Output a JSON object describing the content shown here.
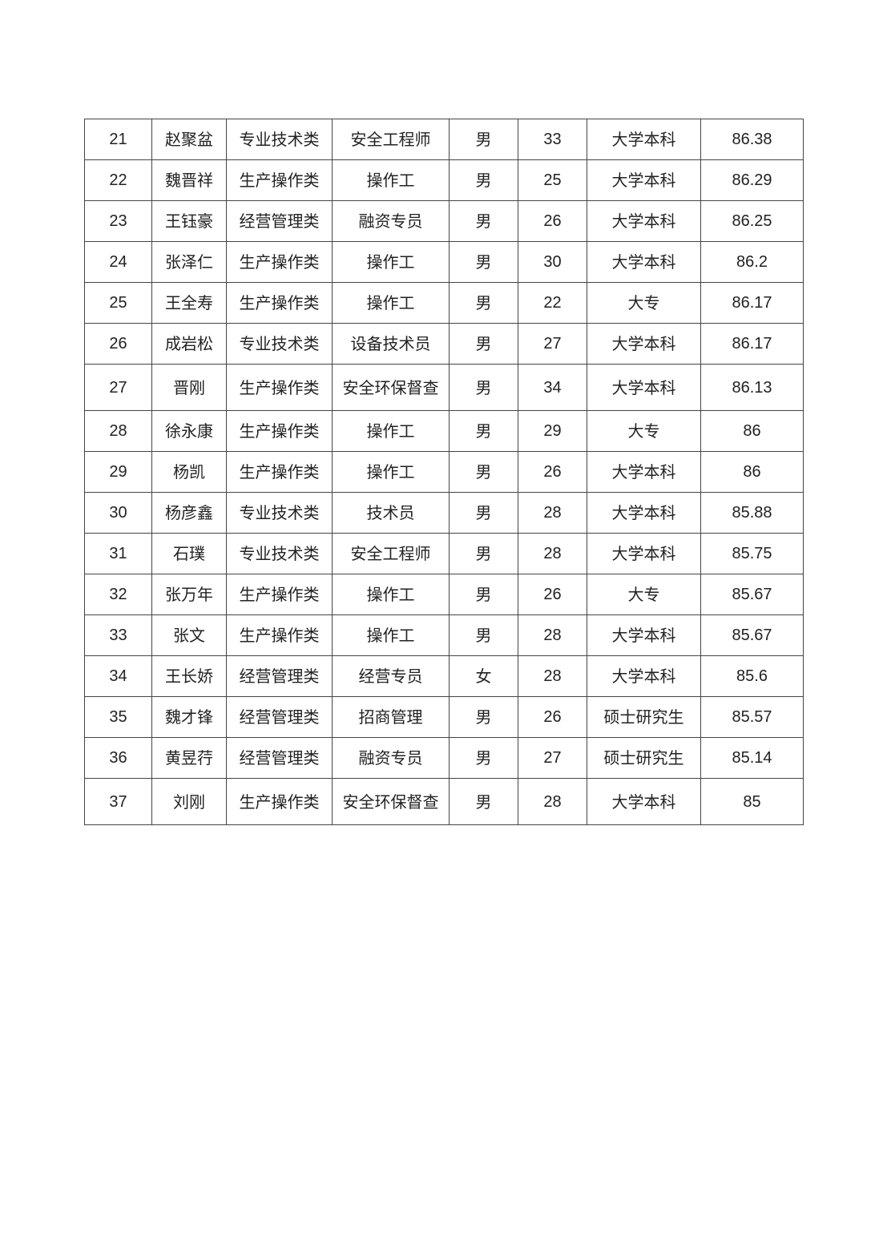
{
  "table": {
    "rows": [
      [
        "21",
        "赵聚盆",
        "专业技术类",
        "安全工程师",
        "男",
        "33",
        "大学本科",
        "86.38"
      ],
      [
        "22",
        "魏晋祥",
        "生产操作类",
        "操作工",
        "男",
        "25",
        "大学本科",
        "86.29"
      ],
      [
        "23",
        "王钰豪",
        "经营管理类",
        "融资专员",
        "男",
        "26",
        "大学本科",
        "86.25"
      ],
      [
        "24",
        "张泽仁",
        "生产操作类",
        "操作工",
        "男",
        "30",
        "大学本科",
        "86.2"
      ],
      [
        "25",
        "王全寿",
        "生产操作类",
        "操作工",
        "男",
        "22",
        "大专",
        "86.17"
      ],
      [
        "26",
        "成岩松",
        "专业技术类",
        "设备技术员",
        "男",
        "27",
        "大学本科",
        "86.17"
      ],
      [
        "27",
        "晋刚",
        "生产操作类",
        "安全环保督查",
        "男",
        "34",
        "大学本科",
        "86.13"
      ],
      [
        "28",
        "徐永康",
        "生产操作类",
        "操作工",
        "男",
        "29",
        "大专",
        "86"
      ],
      [
        "29",
        "杨凯",
        "生产操作类",
        "操作工",
        "男",
        "26",
        "大学本科",
        "86"
      ],
      [
        "30",
        "杨彦鑫",
        "专业技术类",
        "技术员",
        "男",
        "28",
        "大学本科",
        "85.88"
      ],
      [
        "31",
        "石璞",
        "专业技术类",
        "安全工程师",
        "男",
        "28",
        "大学本科",
        "85.75"
      ],
      [
        "32",
        "张万年",
        "生产操作类",
        "操作工",
        "男",
        "26",
        "大专",
        "85.67"
      ],
      [
        "33",
        "张文",
        "生产操作类",
        "操作工",
        "男",
        "28",
        "大学本科",
        "85.67"
      ],
      [
        "34",
        "王长娇",
        "经营管理类",
        "经营专员",
        "女",
        "28",
        "大学本科",
        "85.6"
      ],
      [
        "35",
        "魏才锋",
        "经营管理类",
        "招商管理",
        "男",
        "26",
        "硕士研究生",
        "85.57"
      ],
      [
        "36",
        "黄昱荇",
        "经营管理类",
        "融资专员",
        "男",
        "27",
        "硕士研究生",
        "85.14"
      ],
      [
        "37",
        "刘刚",
        "生产操作类",
        "安全环保督查",
        "男",
        "28",
        "大学本科",
        "85"
      ]
    ]
  }
}
